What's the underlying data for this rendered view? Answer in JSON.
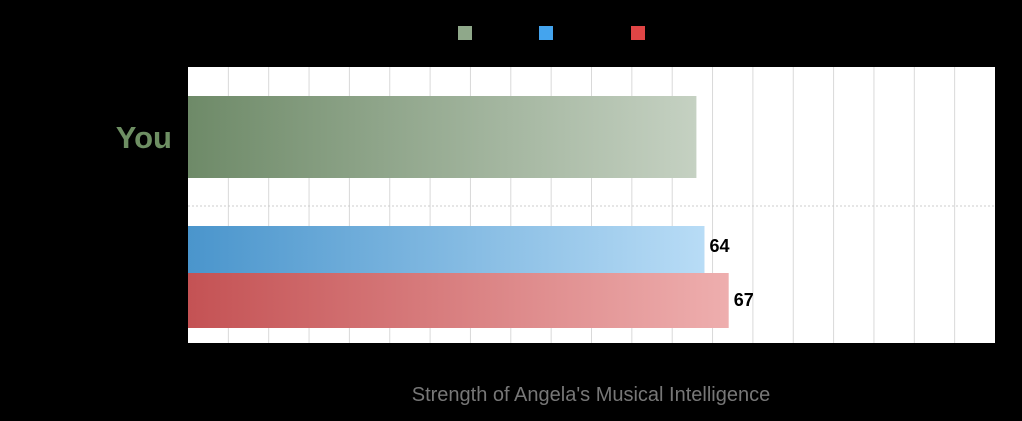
{
  "chart_data": {
    "type": "bar",
    "orientation": "horizontal",
    "title": "",
    "xlabel": "Strength of Angela's Musical Intelligence",
    "ylabel": "",
    "xlim": [
      0,
      100
    ],
    "grid": true,
    "legend_placement": "top",
    "categories": [
      "You",
      ""
    ],
    "series": [
      {
        "category": "You",
        "value": 63,
        "show_label": false,
        "color": "#6e8a68",
        "color_light": "#c5d1c2"
      },
      {
        "category": "",
        "value": 64,
        "label": "64",
        "show_label": true,
        "color": "#4a95cc",
        "color_light": "#b8dcf6"
      },
      {
        "category": "",
        "value": 67,
        "label": "67",
        "show_label": true,
        "color": "#c45254",
        "color_light": "#eeaeae"
      }
    ],
    "category_label_color": "#6e8f63"
  },
  "legend": {
    "swatches": [
      {
        "color": "#8fa88a"
      },
      {
        "color": "#44a4ee"
      },
      {
        "color": "#e04545"
      }
    ]
  },
  "colors": {
    "background": "#000000",
    "plot_area": "#ffffff",
    "grid": "#d9d9d9",
    "xlabel": "#777777"
  }
}
